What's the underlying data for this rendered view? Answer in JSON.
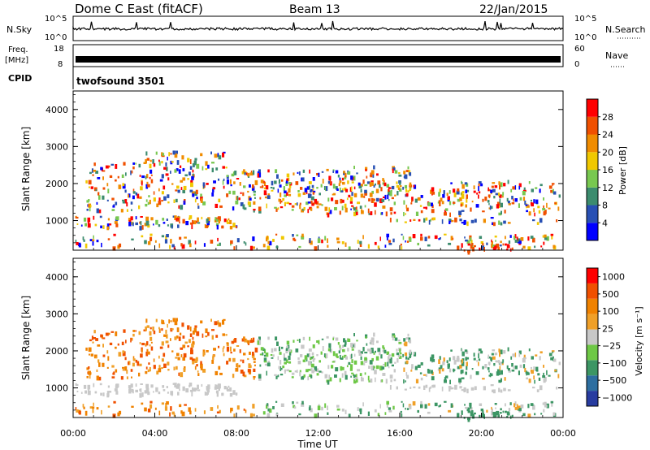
{
  "header": {
    "station": "Dome C East (fitACF)",
    "beam": "Beam 13",
    "date": "22/Jan/2015"
  },
  "strip_panels": {
    "nsky": {
      "label": "N.Sky",
      "ticks": [
        "10^5",
        "10^0"
      ],
      "right_label": "N.Search",
      "right_ticks": [
        "10^5",
        "10^0"
      ]
    },
    "freq": {
      "label_line1": "Freq.",
      "label_line2": "[MHz]",
      "ticks": [
        "18",
        "8"
      ],
      "right_label": "Nave",
      "right_ticks": [
        "60",
        "0"
      ]
    },
    "cpid": {
      "label": "CPID",
      "value": "twofsound 3501"
    }
  },
  "chart_data": [
    {
      "type": "heatmap",
      "panel": "power",
      "ylabel": "Slant Range [km]",
      "yticks": [
        "1000",
        "2000",
        "3000",
        "4000"
      ],
      "ylim": [
        200,
        4500
      ],
      "xlim_hours": [
        0,
        24
      ],
      "colorbar_label": "Power [dB]",
      "colorbar_ticks": [
        "4",
        "8",
        "12",
        "16",
        "20",
        "24",
        "28"
      ],
      "colors": [
        "#0000ff",
        "#2850b4",
        "#3c8c6e",
        "#78c850",
        "#f0c800",
        "#f08c00",
        "#f05000",
        "#ff0000"
      ]
    },
    {
      "type": "heatmap",
      "panel": "velocity",
      "ylabel": "Slant Range [km]",
      "yticks": [
        "1000",
        "2000",
        "3000",
        "4000"
      ],
      "ylim": [
        200,
        4500
      ],
      "xlim_hours": [
        0,
        24
      ],
      "xlabel": "Time UT",
      "xticks": [
        "00:00",
        "04:00",
        "08:00",
        "12:00",
        "16:00",
        "20:00",
        "00:00"
      ],
      "colorbar_label": "Velocity [m s⁻¹]",
      "colorbar_ticks": [
        "1000",
        "500",
        "100",
        "25",
        "−25",
        "−100",
        "−500",
        "−1000"
      ],
      "colors": [
        "#283ca0",
        "#2d6ea0",
        "#3c9664",
        "#6ec846",
        "#c8c8c8",
        "#f0a028",
        "#f08200",
        "#f05000",
        "#ff0000"
      ]
    }
  ]
}
